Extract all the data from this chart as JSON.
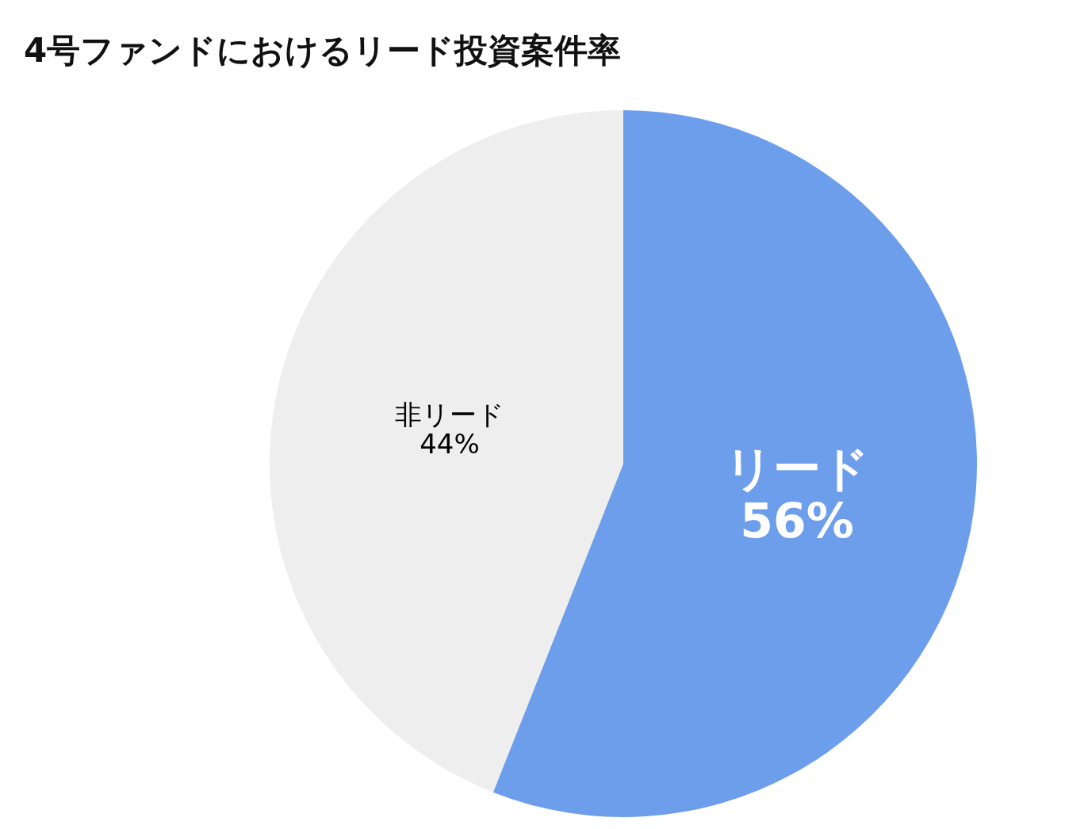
{
  "chart_data": {
    "type": "pie",
    "title": "4号ファンドにおけるリード投資案件率",
    "categories": [
      "リード",
      "非リード"
    ],
    "values": [
      56,
      44
    ],
    "colors": [
      "#6d9eeb",
      "#eeeeee"
    ],
    "value_labels": [
      "56%",
      "44%"
    ],
    "legend": false
  }
}
